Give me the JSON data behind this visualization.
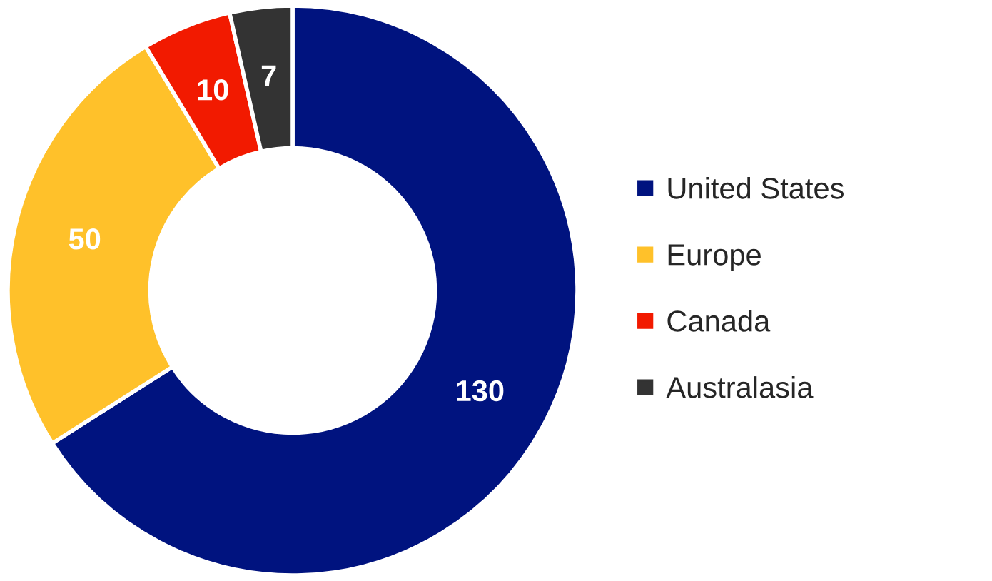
{
  "chart_data": {
    "type": "donut",
    "categories": [
      "United States",
      "Europe",
      "Canada",
      "Australasia"
    ],
    "values": [
      130,
      50,
      10,
      7
    ],
    "colors": [
      "#00137f",
      "#ffc12a",
      "#f21a00",
      "#333333"
    ],
    "data_labels": true,
    "legend": "right"
  }
}
